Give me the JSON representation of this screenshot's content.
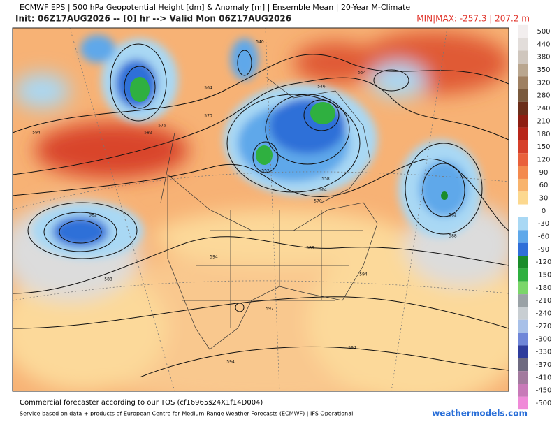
{
  "header": {
    "title": "ECMWF EPS | 500 hPa Geopotential Height [dm] & Anomaly [m] | Ensemble Mean | 20-Year M-Climate",
    "subtitle": "Init: 06Z17AUG2026 -- [0] hr --> Valid Mon 06Z17AUG2026",
    "minmax": "MIN|MAX: -257.3 | 207.2 m"
  },
  "contour_labels": [
    540,
    564,
    570,
    576,
    582,
    594,
    546,
    552,
    558,
    564,
    570,
    554,
    582,
    588,
    582,
    588,
    594,
    588,
    594,
    597,
    594,
    594
  ],
  "colorbar": [
    {
      "value": 500,
      "color": "#f2eeee"
    },
    {
      "value": 440,
      "color": "#e2ddda"
    },
    {
      "value": 380,
      "color": "#cfc6bd"
    },
    {
      "value": 350,
      "color": "#b9a68f"
    },
    {
      "value": 320,
      "color": "#9e8062"
    },
    {
      "value": 280,
      "color": "#7a5a3e"
    },
    {
      "value": 240,
      "color": "#6b2e1a"
    },
    {
      "value": 210,
      "color": "#8e1e12"
    },
    {
      "value": 180,
      "color": "#b8261a"
    },
    {
      "value": 150,
      "color": "#d6402a"
    },
    {
      "value": 120,
      "color": "#e9613c"
    },
    {
      "value": 90,
      "color": "#f38a4e"
    },
    {
      "value": 60,
      "color": "#f8b36c"
    },
    {
      "value": 30,
      "color": "#fcd88f"
    },
    {
      "value": 0,
      "color": "#ffffff"
    },
    {
      "value": -30,
      "color": "#a9d8f4"
    },
    {
      "value": -60,
      "color": "#5fa8ea"
    },
    {
      "value": -90,
      "color": "#2f6fd8"
    },
    {
      "value": -120,
      "color": "#1a8c2a"
    },
    {
      "value": -150,
      "color": "#2fb040"
    },
    {
      "value": -180,
      "color": "#7bd66a"
    },
    {
      "value": -210,
      "color": "#9aa2a6"
    },
    {
      "value": -240,
      "color": "#c8ced2"
    },
    {
      "value": -270,
      "color": "#a8c0e8"
    },
    {
      "value": -300,
      "color": "#6f86d8"
    },
    {
      "value": -330,
      "color": "#2e3c9c"
    },
    {
      "value": -370,
      "color": "#6e6a80"
    },
    {
      "value": -410,
      "color": "#a27a9e"
    },
    {
      "value": -450,
      "color": "#c87ab8"
    },
    {
      "value": -500,
      "color": "#f08ad8"
    }
  ],
  "footer": {
    "tos": "Commercial forecaster according to our TOS (cf16965s24X1f14D004)",
    "credit": "Service based on data + products of European Centre for Medium-Range Weather Forecasts (ECMWF) | IFS Operational",
    "site": "weathermodels.com"
  }
}
